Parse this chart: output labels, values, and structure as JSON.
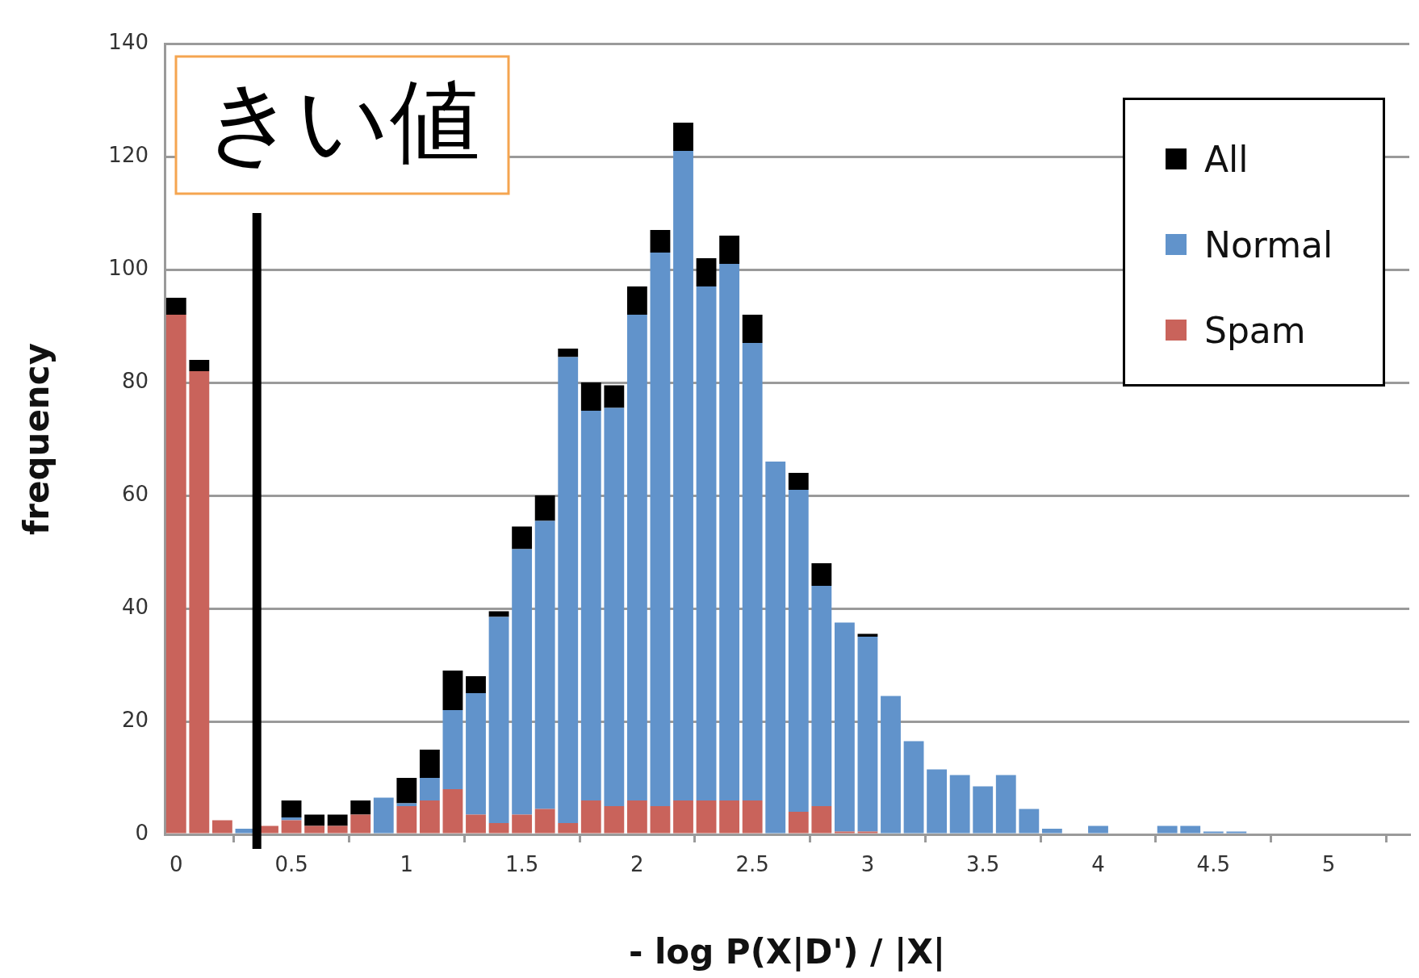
{
  "chart_data": {
    "type": "bar",
    "stacked": true,
    "xlabel": "- log P(X|D') / |X|",
    "ylabel": "frequency",
    "x": [
      0,
      0.1,
      0.2,
      0.3,
      0.4,
      0.5,
      0.6,
      0.7,
      0.8,
      0.9,
      1,
      1.1,
      1.2,
      1.3,
      1.4,
      1.5,
      1.6,
      1.7,
      1.8,
      1.9,
      2,
      2.1,
      2.2,
      2.3,
      2.4,
      2.5,
      2.6,
      2.7,
      2.8,
      2.9,
      3,
      3.1,
      3.2,
      3.3,
      3.4,
      3.5,
      3.6,
      3.7,
      3.8,
      3.9,
      4,
      4.1,
      4.2,
      4.3,
      4.4,
      4.5,
      4.6
    ],
    "series": [
      {
        "name": "Spam",
        "color": "#c9635b",
        "values": [
          92,
          82,
          2.5,
          0,
          1.5,
          2.5,
          1.5,
          1.5,
          3.5,
          0,
          5,
          6,
          8,
          3.5,
          2,
          3.5,
          4.5,
          2,
          6,
          5,
          6,
          5,
          6,
          6,
          6,
          6,
          0,
          4,
          5,
          0.5,
          0.5,
          0,
          0,
          0,
          0,
          0,
          0,
          0,
          0,
          0,
          0,
          0,
          0,
          0,
          0,
          0,
          0
        ]
      },
      {
        "name": "Normal",
        "color": "#6193cb",
        "values": [
          0,
          0,
          0,
          1,
          0,
          0.5,
          0,
          0,
          0,
          6.5,
          0.5,
          4,
          14,
          21.5,
          36.5,
          47,
          51,
          82.5,
          69,
          70.5,
          86,
          98,
          115,
          91,
          95,
          81,
          66,
          57,
          39,
          37,
          34.5,
          24.5,
          16.5,
          11.5,
          10.5,
          8.5,
          10.5,
          4.5,
          1,
          0,
          1.5,
          0,
          0,
          1.5,
          1.5,
          0.5,
          0.5
        ]
      },
      {
        "name": "All",
        "color": "#000000",
        "values": [
          3,
          2,
          0,
          0,
          0,
          3,
          2,
          2,
          2.5,
          0,
          4.5,
          5,
          7,
          3,
          1,
          4,
          4.5,
          1.5,
          5,
          4,
          5,
          4,
          5,
          5,
          5,
          5,
          0,
          3,
          4,
          0,
          0.5,
          0,
          0,
          0,
          0,
          0,
          0,
          0,
          0,
          0,
          0,
          0,
          0,
          0,
          0,
          0,
          0
        ]
      }
    ],
    "xlim": [
      -0.05,
      5.35
    ],
    "xticks": [
      0,
      0.5,
      1,
      1.5,
      2,
      2.5,
      3,
      3.5,
      4,
      4.5,
      5
    ],
    "ylim": [
      0,
      140
    ],
    "yticks": [
      0,
      20,
      40,
      60,
      80,
      100,
      120,
      140
    ],
    "grid": "y",
    "legend": "top right",
    "ref_lines": [
      {
        "axis": "x",
        "value": 0.35,
        "label": "きい値",
        "color": "#000000"
      }
    ]
  }
}
